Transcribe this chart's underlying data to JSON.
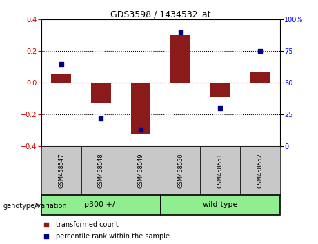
{
  "title": "GDS3598 / 1434532_at",
  "samples": [
    "GSM458547",
    "GSM458548",
    "GSM458549",
    "GSM458550",
    "GSM458551",
    "GSM458552"
  ],
  "bar_values": [
    0.06,
    -0.13,
    -0.32,
    0.3,
    -0.09,
    0.07
  ],
  "scatter_values": [
    65,
    22,
    13,
    90,
    30,
    75
  ],
  "bar_color": "#8B1A1A",
  "scatter_color": "#00008B",
  "ylim_left": [
    -0.4,
    0.4
  ],
  "ylim_right": [
    0,
    100
  ],
  "yticks_left": [
    -0.4,
    -0.2,
    0.0,
    0.2,
    0.4
  ],
  "yticks_right": [
    0,
    25,
    50,
    75,
    100
  ],
  "ytick_labels_right": [
    "0",
    "25",
    "50",
    "75",
    "100%"
  ],
  "zero_line_color": "#CC0000",
  "grid_color": "black",
  "legend_bar_label": "transformed count",
  "legend_scatter_label": "percentile rank within the sample",
  "genotype_label": "genotype/variation",
  "group1_label": "p300 +/-",
  "group2_label": "wild-type",
  "group_bg_color": "#90EE90",
  "sample_bg_color": "#C8C8C8",
  "bar_width": 0.5
}
